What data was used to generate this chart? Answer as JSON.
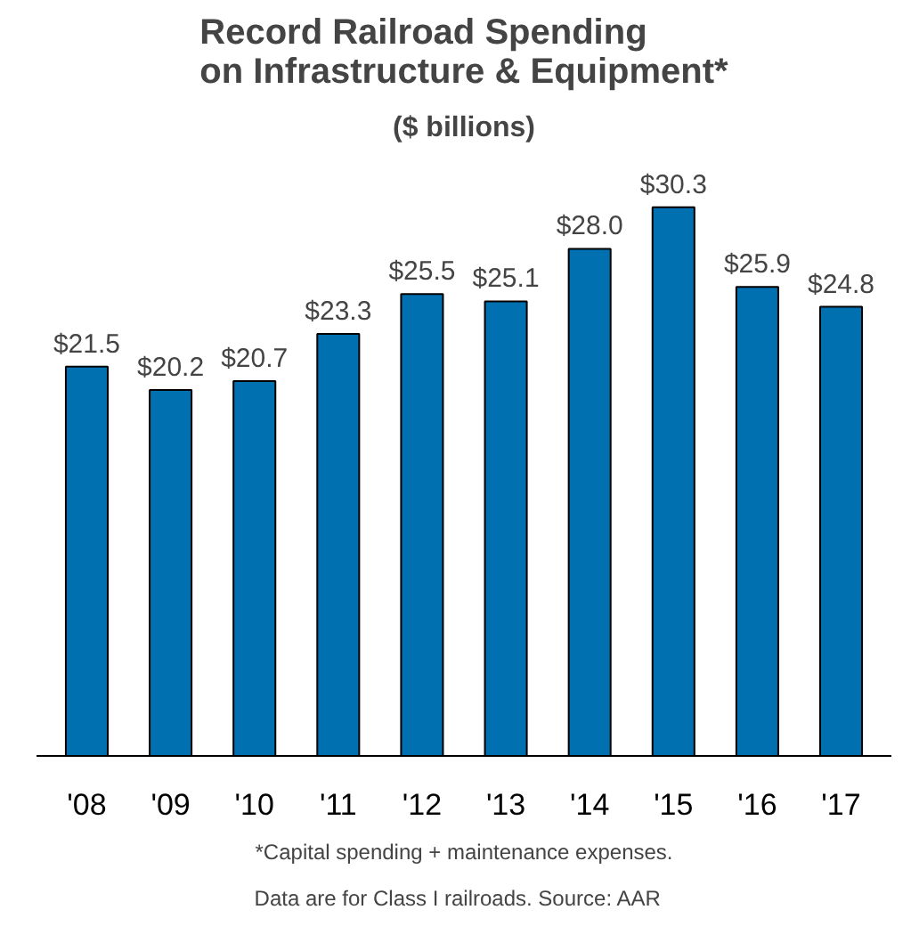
{
  "chart_data": {
    "type": "bar",
    "title": "Record Railroad Spending\non Infrastructure & Equipment*",
    "subtitle": "($ billions)",
    "categories": [
      "'08",
      "'09",
      "'10",
      "'11",
      "'12",
      "'13",
      "'14",
      "'15",
      "'16",
      "'17"
    ],
    "values": [
      21.5,
      20.2,
      20.7,
      23.3,
      25.5,
      25.1,
      28.0,
      30.3,
      25.9,
      24.8
    ],
    "value_labels": [
      "$21.5",
      "$20.2",
      "$20.7",
      "$23.3",
      "$25.5",
      "$25.1",
      "$28.0",
      "$30.3",
      "$25.9",
      "$24.8"
    ],
    "color": "#0070b0",
    "tick_labels": "x",
    "grid": false,
    "annotations": [
      "*Capital spending + maintenance expenses.",
      "Data are for Class I railroads.   Source: AAR"
    ]
  }
}
